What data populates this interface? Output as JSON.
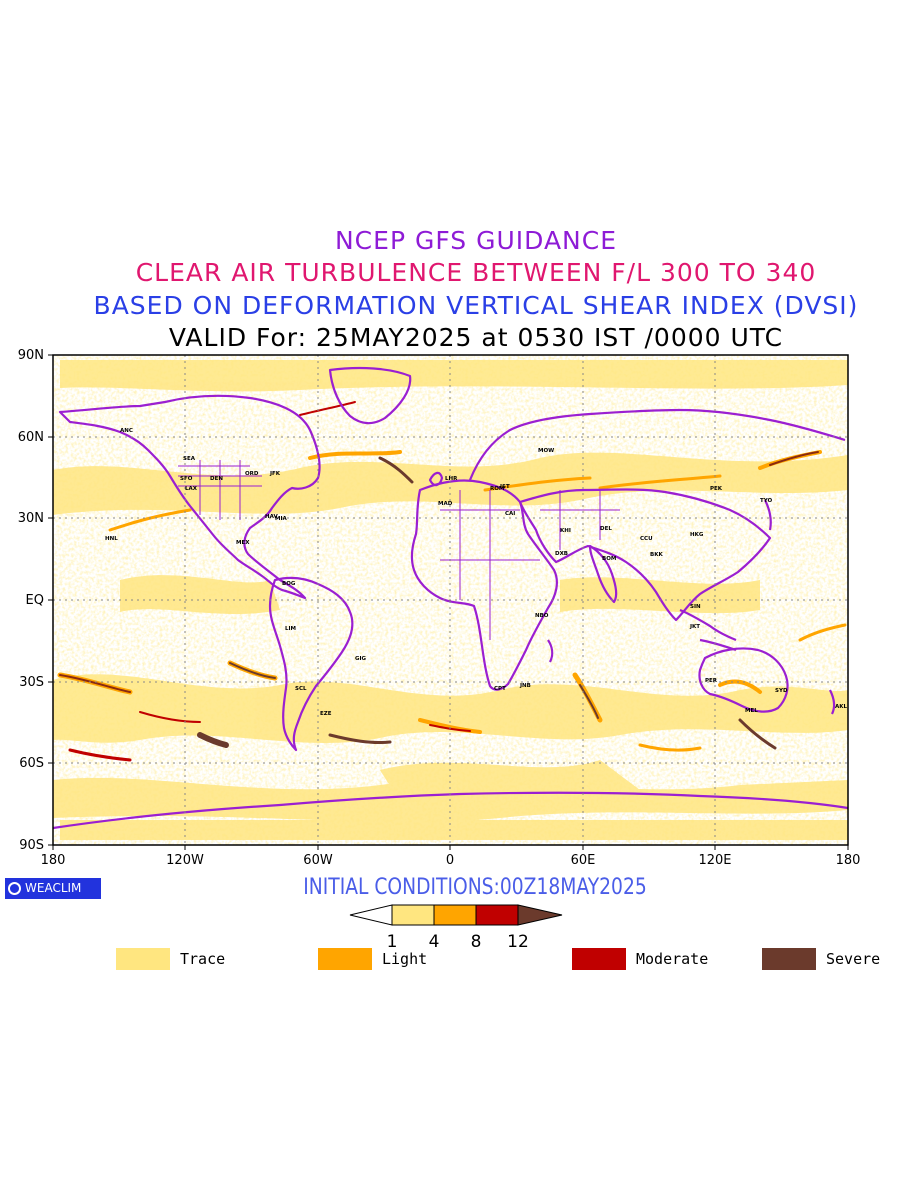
{
  "titles": {
    "line1": "NCEP GFS GUIDANCE",
    "line2": "CLEAR AIR TURBULENCE BETWEEN F/L 300 TO 340",
    "line3": "BASED ON DEFORMATION VERTICAL SHEAR INDEX (DVSI)",
    "line4": "VALID For: 25MAY2025 at 0530 IST /0000 UTC"
  },
  "axes": {
    "lat_labels": [
      "90N",
      "60N",
      "30N",
      "EQ",
      "30S",
      "60S",
      "90S"
    ],
    "lon_labels": [
      "180",
      "120W",
      "60W",
      "0",
      "60E",
      "120E",
      "180"
    ]
  },
  "initial_conditions": "INITIAL CONDITIONS:00Z18MAY2025",
  "logo_text": "WEACLIM",
  "colorbar": {
    "ticks": [
      "1",
      "4",
      "8",
      "12"
    ],
    "colors": [
      "#ffffff",
      "#ffe680",
      "#ffa500",
      "#c00000",
      "#6b3a2c"
    ]
  },
  "legend": [
    {
      "label": "Trace",
      "color": "#ffe680"
    },
    {
      "label": "Light",
      "color": "#ffa500"
    },
    {
      "label": "Moderate",
      "color": "#c00000"
    },
    {
      "label": "Severe",
      "color": "#6b3a2c"
    }
  ],
  "colors": {
    "coastline": "#9b1fd1",
    "title1": "#8e1bd6",
    "title2": "#e0176f",
    "title3": "#2a3fe6"
  },
  "station_labels": [
    "ANC",
    "SEA",
    "SFO",
    "LAX",
    "DEN",
    "ORD",
    "JFK",
    "MIA",
    "MEX",
    "HNL",
    "HAV",
    "BOG",
    "LIM",
    "SCL",
    "GIG",
    "EZE",
    "LHR",
    "MAD",
    "ROM",
    "CAI",
    "DXB",
    "DEL",
    "BOM",
    "PEK",
    "TYO",
    "SIN",
    "JKT",
    "SYD",
    "AKL",
    "JNB",
    "NBO",
    "CPT",
    "MOW",
    "IST",
    "KHI",
    "CCU",
    "HKG",
    "BKK",
    "PER",
    "MEL"
  ]
}
